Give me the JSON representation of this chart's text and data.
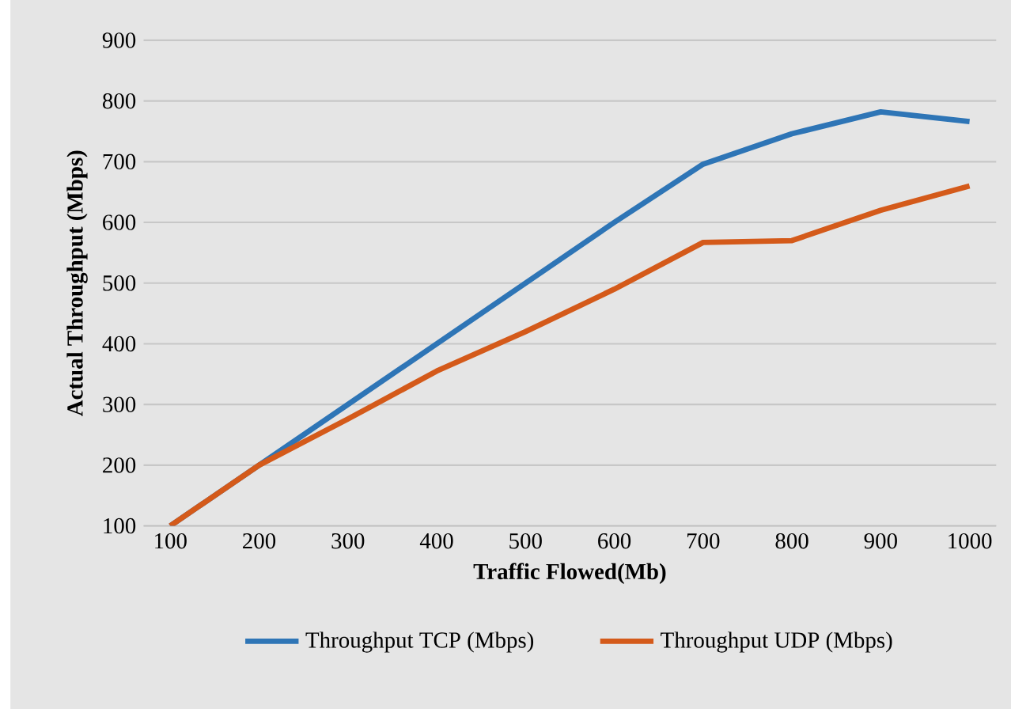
{
  "chart_data": {
    "type": "line",
    "xlabel": "Traffic Flowed(Mb)",
    "ylabel": "Actual Throughput (Mbps)",
    "categories": [
      "100",
      "200",
      "300",
      "400",
      "500",
      "600",
      "700",
      "800",
      "900",
      "1000"
    ],
    "series": [
      {
        "name": "Throughput TCP (Mbps)",
        "color": "#2e75b6",
        "values": [
          100,
          200,
          300,
          400,
          500,
          600,
          696,
          746,
          782,
          766
        ]
      },
      {
        "name": "Throughput UDP (Mbps)",
        "color": "#d45a1a",
        "values": [
          100,
          200,
          276,
          355,
          420,
          490,
          567,
          570,
          620,
          660
        ]
      }
    ],
    "ylim": [
      100,
      900
    ],
    "yticks": [
      100,
      200,
      300,
      400,
      500,
      600,
      700,
      800,
      900
    ],
    "grid": "y",
    "legend": "bottom",
    "marker": "none",
    "line_style": "solid"
  }
}
